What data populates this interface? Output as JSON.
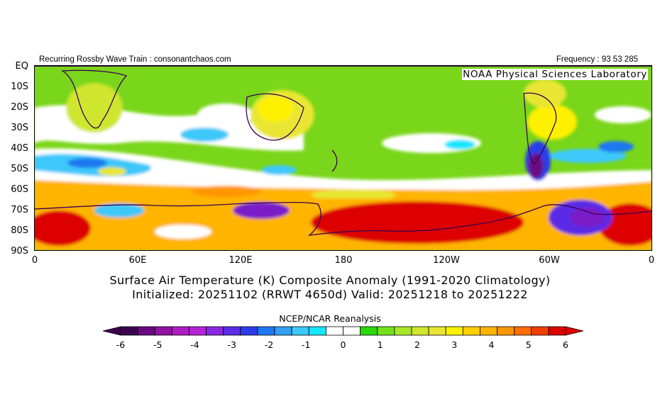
{
  "header": {
    "left": "Recurring Rossby Wave Train : consonantchaos.com",
    "right": "Frequency : 93 53 285"
  },
  "lab_label": "NOAA Physical Sciences Laboratory",
  "y_axis": [
    "EQ",
    "10S",
    "20S",
    "30S",
    "40S",
    "50S",
    "60S",
    "70S",
    "80S",
    "90S"
  ],
  "x_axis": [
    "0",
    "60E",
    "120E",
    "180",
    "120W",
    "60W",
    "0"
  ],
  "title_line1": "Surface Air Temperature (K) Composite Anomaly (1991-2020 Climatology)",
  "title_line2": "Initialized: 20251102 (RRWT 4650d) Valid: 20251218 to 20251222",
  "source": "NCEP/NCAR Reanalysis",
  "colorbar": {
    "labels": [
      "-6",
      "-5",
      "-4",
      "-3",
      "-2",
      "-1",
      "0",
      "1",
      "2",
      "3",
      "4",
      "5",
      "6"
    ],
    "colors": [
      "#3c0050",
      "#6a0a80",
      "#8f12a3",
      "#b01cc3",
      "#b424d6",
      "#8a2ae0",
      "#5a2ce6",
      "#2c3ce8",
      "#1e78f0",
      "#32a0f5",
      "#3cc8fa",
      "#14e6ff",
      "#ffffff",
      "#ffffff",
      "#2ad80c",
      "#74e01a",
      "#a8e62a",
      "#cfe62e",
      "#e8e632",
      "#fff000",
      "#ffd000",
      "#ffb400",
      "#ff9600",
      "#ff6e00",
      "#f04000",
      "#dc0000"
    ]
  },
  "map_colors": {
    "neg_strong": "#3c0050",
    "neg_purple": "#7a1cc8",
    "neg_blue": "#2c3ce8",
    "neg_light": "#32a0f5",
    "neg_cyan": "#14e6ff",
    "pos_green": "#2ad80c",
    "pos_lightgreen": "#a8e62a",
    "pos_yellow": "#fff000",
    "pos_orange": "#ff9600",
    "pos_red": "#dc0000",
    "coast": "#3a0050"
  }
}
